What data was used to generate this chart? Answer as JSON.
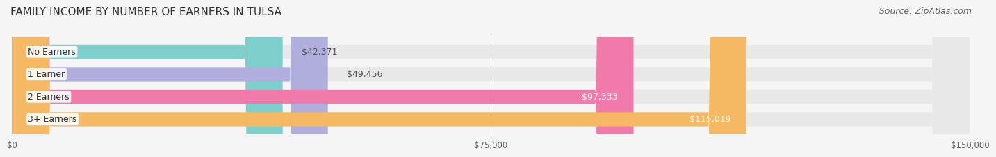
{
  "title": "FAMILY INCOME BY NUMBER OF EARNERS IN TULSA",
  "source": "Source: ZipAtlas.com",
  "categories": [
    "No Earners",
    "1 Earner",
    "2 Earners",
    "3+ Earners"
  ],
  "values": [
    42371,
    49456,
    97333,
    115019
  ],
  "max_value": 150000,
  "bar_colors": [
    "#7dd0cc",
    "#b0aedd",
    "#f07aaa",
    "#f5b963"
  ],
  "bar_bg_color": "#e8e8e8",
  "label_colors": [
    "#555555",
    "#555555",
    "#ffffff",
    "#ffffff"
  ],
  "bar_height": 0.62,
  "xticks": [
    0,
    75000,
    150000
  ],
  "xtick_labels": [
    "$0",
    "$75,000",
    "$150,000"
  ],
  "background_color": "#f5f5f5",
  "title_fontsize": 11,
  "source_fontsize": 9,
  "label_fontsize": 9,
  "category_fontsize": 9,
  "value_fontsize": 9
}
